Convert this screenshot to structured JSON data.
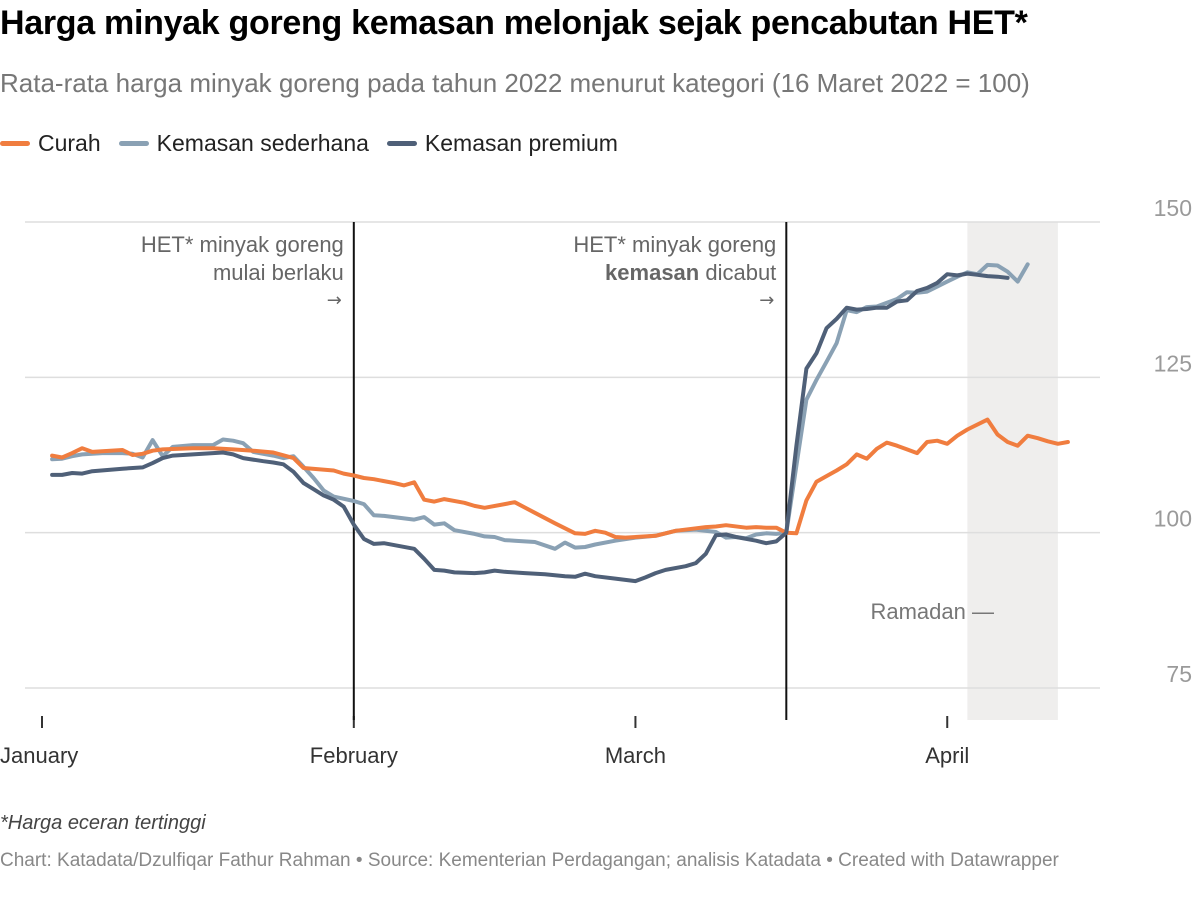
{
  "title": "Harga minyak goreng kemasan melonjak sejak pencabutan HET*",
  "subtitle": "Rata-rata harga minyak goreng pada tahun 2022 menurut kategori (16 Maret 2022 = 100)",
  "footnote": "*Harga eceran tertinggi",
  "credit": "Chart: Katadata/Dzulfiqar Fathur Rahman • Source: Kementerian Perdagangan; analisis Katadata • Created with Datawrapper",
  "chart_data": {
    "type": "line",
    "title": "Harga minyak goreng kemasan melonjak sejak pencabutan HET*",
    "subtitle": "Rata-rata harga minyak goreng pada tahun 2022 menurut kategori (16 Maret 2022 = 100)",
    "ylim": [
      70,
      150
    ],
    "y_ticks": [
      75,
      100,
      125,
      150
    ],
    "x_tick_labels": [
      {
        "day": 1,
        "label": "January"
      },
      {
        "day": 32,
        "label": "February"
      },
      {
        "day": 60,
        "label": "March"
      },
      {
        "day": 91,
        "label": "April"
      }
    ],
    "x_range_days": [
      0,
      105
    ],
    "grid": true,
    "legend": "top-left",
    "annotations": {
      "het_start": {
        "day": 32,
        "line1": "HET* minyak goreng",
        "line2": "mulai berlaku",
        "arrow": "→"
      },
      "het_removed": {
        "day": 75,
        "line1": "HET* minyak goreng",
        "line2_bold": "kemasan",
        "line2_rest": " dicabut",
        "arrow": "→"
      },
      "ramadan": {
        "start_day": 93,
        "end_day": 102,
        "label": "Ramadan —"
      }
    },
    "series": [
      {
        "name": "Curah",
        "color": "#f07d3f",
        "points": [
          [
            2,
            112.4
          ],
          [
            3,
            112.1
          ],
          [
            4,
            112.8
          ],
          [
            5,
            113.6
          ],
          [
            6,
            113.0
          ],
          [
            7,
            113.1
          ],
          [
            9,
            113.3
          ],
          [
            10,
            112.5
          ],
          [
            11,
            112.7
          ],
          [
            12,
            113.2
          ],
          [
            13,
            113.4
          ],
          [
            16,
            113.6
          ],
          [
            18,
            113.6
          ],
          [
            20,
            113.4
          ],
          [
            22,
            113.2
          ],
          [
            24,
            112.9
          ],
          [
            26,
            112.0
          ],
          [
            27,
            110.4
          ],
          [
            30,
            110.0
          ],
          [
            31,
            109.5
          ],
          [
            32,
            109.2
          ],
          [
            33,
            108.8
          ],
          [
            34,
            108.6
          ],
          [
            36,
            108.0
          ],
          [
            37,
            107.6
          ],
          [
            38,
            108.1
          ],
          [
            39,
            105.3
          ],
          [
            40,
            105.0
          ],
          [
            41,
            105.4
          ],
          [
            43,
            104.8
          ],
          [
            44,
            104.3
          ],
          [
            45,
            104.0
          ],
          [
            47,
            104.6
          ],
          [
            48,
            104.9
          ],
          [
            50,
            103.2
          ],
          [
            52,
            101.5
          ],
          [
            54,
            99.9
          ],
          [
            55,
            99.8
          ],
          [
            56,
            100.3
          ],
          [
            57,
            100.0
          ],
          [
            58,
            99.3
          ],
          [
            59,
            99.2
          ],
          [
            62,
            99.5
          ],
          [
            63,
            99.9
          ],
          [
            64,
            100.3
          ],
          [
            66,
            100.7
          ],
          [
            67,
            100.9
          ],
          [
            68,
            101.0
          ],
          [
            69,
            101.2
          ],
          [
            71,
            100.8
          ],
          [
            72,
            100.9
          ],
          [
            73,
            100.8
          ],
          [
            74,
            100.8
          ],
          [
            75,
            100.0
          ],
          [
            76,
            99.9
          ],
          [
            77,
            105.2
          ],
          [
            78,
            108.2
          ],
          [
            79,
            109.1
          ],
          [
            80,
            110.0
          ],
          [
            81,
            111.0
          ],
          [
            82,
            112.6
          ],
          [
            83,
            111.9
          ],
          [
            84,
            113.5
          ],
          [
            85,
            114.5
          ],
          [
            86,
            114.0
          ],
          [
            87,
            113.4
          ],
          [
            88,
            112.8
          ],
          [
            89,
            114.6
          ],
          [
            90,
            114.8
          ],
          [
            91,
            114.3
          ],
          [
            92,
            115.6
          ],
          [
            93,
            116.6
          ],
          [
            95,
            118.2
          ],
          [
            96,
            115.8
          ],
          [
            97,
            114.6
          ],
          [
            98,
            114.0
          ],
          [
            99,
            115.6
          ],
          [
            100,
            115.2
          ],
          [
            101,
            114.7
          ],
          [
            102,
            114.3
          ],
          [
            103,
            114.6
          ]
        ]
      },
      {
        "name": "Kemasan sederhana",
        "color": "#8aa1b4",
        "points": [
          [
            2,
            111.8
          ],
          [
            3,
            111.9
          ],
          [
            4,
            112.3
          ],
          [
            5,
            112.6
          ],
          [
            7,
            112.8
          ],
          [
            9,
            112.8
          ],
          [
            10,
            112.7
          ],
          [
            11,
            112.1
          ],
          [
            12,
            114.9
          ],
          [
            13,
            112.3
          ],
          [
            14,
            113.8
          ],
          [
            16,
            114.1
          ],
          [
            18,
            114.1
          ],
          [
            19,
            115.0
          ],
          [
            20,
            114.8
          ],
          [
            21,
            114.4
          ],
          [
            22,
            113.0
          ],
          [
            24,
            112.4
          ],
          [
            25,
            112.0
          ],
          [
            26,
            112.3
          ],
          [
            27,
            110.6
          ],
          [
            28,
            108.8
          ],
          [
            29,
            106.8
          ],
          [
            30,
            105.8
          ],
          [
            32,
            105.1
          ],
          [
            33,
            104.6
          ],
          [
            34,
            102.8
          ],
          [
            35,
            102.7
          ],
          [
            38,
            102.1
          ],
          [
            39,
            102.5
          ],
          [
            40,
            101.3
          ],
          [
            41,
            101.5
          ],
          [
            42,
            100.4
          ],
          [
            44,
            99.8
          ],
          [
            45,
            99.4
          ],
          [
            46,
            99.3
          ],
          [
            47,
            98.8
          ],
          [
            48,
            98.7
          ],
          [
            50,
            98.5
          ],
          [
            52,
            97.4
          ],
          [
            53,
            98.4
          ],
          [
            54,
            97.6
          ],
          [
            55,
            97.7
          ],
          [
            56,
            98.1
          ],
          [
            58,
            98.7
          ],
          [
            60,
            99.2
          ],
          [
            62,
            99.5
          ],
          [
            64,
            100.3
          ],
          [
            66,
            100.5
          ],
          [
            68,
            100.1
          ],
          [
            69,
            99.2
          ],
          [
            70,
            99.3
          ],
          [
            71,
            99.1
          ],
          [
            72,
            99.7
          ],
          [
            73,
            99.9
          ],
          [
            74,
            99.8
          ],
          [
            75,
            100.0
          ],
          [
            76,
            110.8
          ],
          [
            77,
            121.4
          ],
          [
            78,
            124.6
          ],
          [
            79,
            127.5
          ],
          [
            80,
            130.5
          ],
          [
            81,
            135.8
          ],
          [
            82,
            135.5
          ],
          [
            83,
            136.3
          ],
          [
            84,
            136.4
          ],
          [
            85,
            137.0
          ],
          [
            86,
            137.6
          ],
          [
            87,
            138.7
          ],
          [
            88,
            138.6
          ],
          [
            89,
            138.8
          ],
          [
            90,
            139.6
          ],
          [
            91,
            140.4
          ],
          [
            92,
            141.2
          ],
          [
            93,
            141.9
          ],
          [
            94,
            141.6
          ],
          [
            95,
            143.1
          ],
          [
            96,
            143.0
          ],
          [
            97,
            142.0
          ],
          [
            98,
            140.4
          ],
          [
            99,
            143.2
          ]
        ]
      },
      {
        "name": "Kemasan premium",
        "color": "#4f6078",
        "points": [
          [
            2,
            109.3
          ],
          [
            3,
            109.3
          ],
          [
            4,
            109.6
          ],
          [
            5,
            109.5
          ],
          [
            6,
            109.9
          ],
          [
            9,
            110.3
          ],
          [
            11,
            110.5
          ],
          [
            12,
            111.2
          ],
          [
            13,
            112.0
          ],
          [
            14,
            112.4
          ],
          [
            16,
            112.6
          ],
          [
            17,
            112.7
          ],
          [
            18,
            112.8
          ],
          [
            19,
            112.9
          ],
          [
            20,
            112.6
          ],
          [
            21,
            112.0
          ],
          [
            23,
            111.5
          ],
          [
            24,
            111.3
          ],
          [
            25,
            111.0
          ],
          [
            26,
            109.8
          ],
          [
            27,
            108.0
          ],
          [
            28,
            107.0
          ],
          [
            29,
            106.0
          ],
          [
            30,
            105.3
          ],
          [
            31,
            104.2
          ],
          [
            32,
            101.3
          ],
          [
            33,
            99.0
          ],
          [
            34,
            98.2
          ],
          [
            35,
            98.3
          ],
          [
            38,
            97.4
          ],
          [
            39,
            95.8
          ],
          [
            40,
            94.0
          ],
          [
            41,
            93.9
          ],
          [
            42,
            93.6
          ],
          [
            44,
            93.5
          ],
          [
            45,
            93.6
          ],
          [
            46,
            93.9
          ],
          [
            47,
            93.7
          ],
          [
            49,
            93.5
          ],
          [
            51,
            93.3
          ],
          [
            53,
            93.0
          ],
          [
            54,
            92.9
          ],
          [
            55,
            93.4
          ],
          [
            56,
            93.0
          ],
          [
            58,
            92.6
          ],
          [
            60,
            92.2
          ],
          [
            61,
            92.8
          ],
          [
            62,
            93.5
          ],
          [
            63,
            94.0
          ],
          [
            65,
            94.6
          ],
          [
            66,
            95.1
          ],
          [
            67,
            96.6
          ],
          [
            68,
            99.6
          ],
          [
            69,
            99.7
          ],
          [
            70,
            99.3
          ],
          [
            72,
            98.7
          ],
          [
            73,
            98.3
          ],
          [
            74,
            98.6
          ],
          [
            75,
            100.0
          ],
          [
            76,
            114.0
          ],
          [
            77,
            126.4
          ],
          [
            78,
            128.9
          ],
          [
            79,
            132.9
          ],
          [
            80,
            134.4
          ],
          [
            81,
            136.2
          ],
          [
            82,
            135.9
          ],
          [
            83,
            136.0
          ],
          [
            84,
            136.2
          ],
          [
            85,
            136.2
          ],
          [
            86,
            137.2
          ],
          [
            87,
            137.4
          ],
          [
            88,
            138.9
          ],
          [
            89,
            139.4
          ],
          [
            90,
            140.2
          ],
          [
            91,
            141.6
          ],
          [
            92,
            141.4
          ],
          [
            93,
            141.7
          ],
          [
            94,
            141.5
          ],
          [
            95,
            141.3
          ],
          [
            96,
            141.2
          ],
          [
            97,
            141.0
          ]
        ]
      }
    ]
  }
}
